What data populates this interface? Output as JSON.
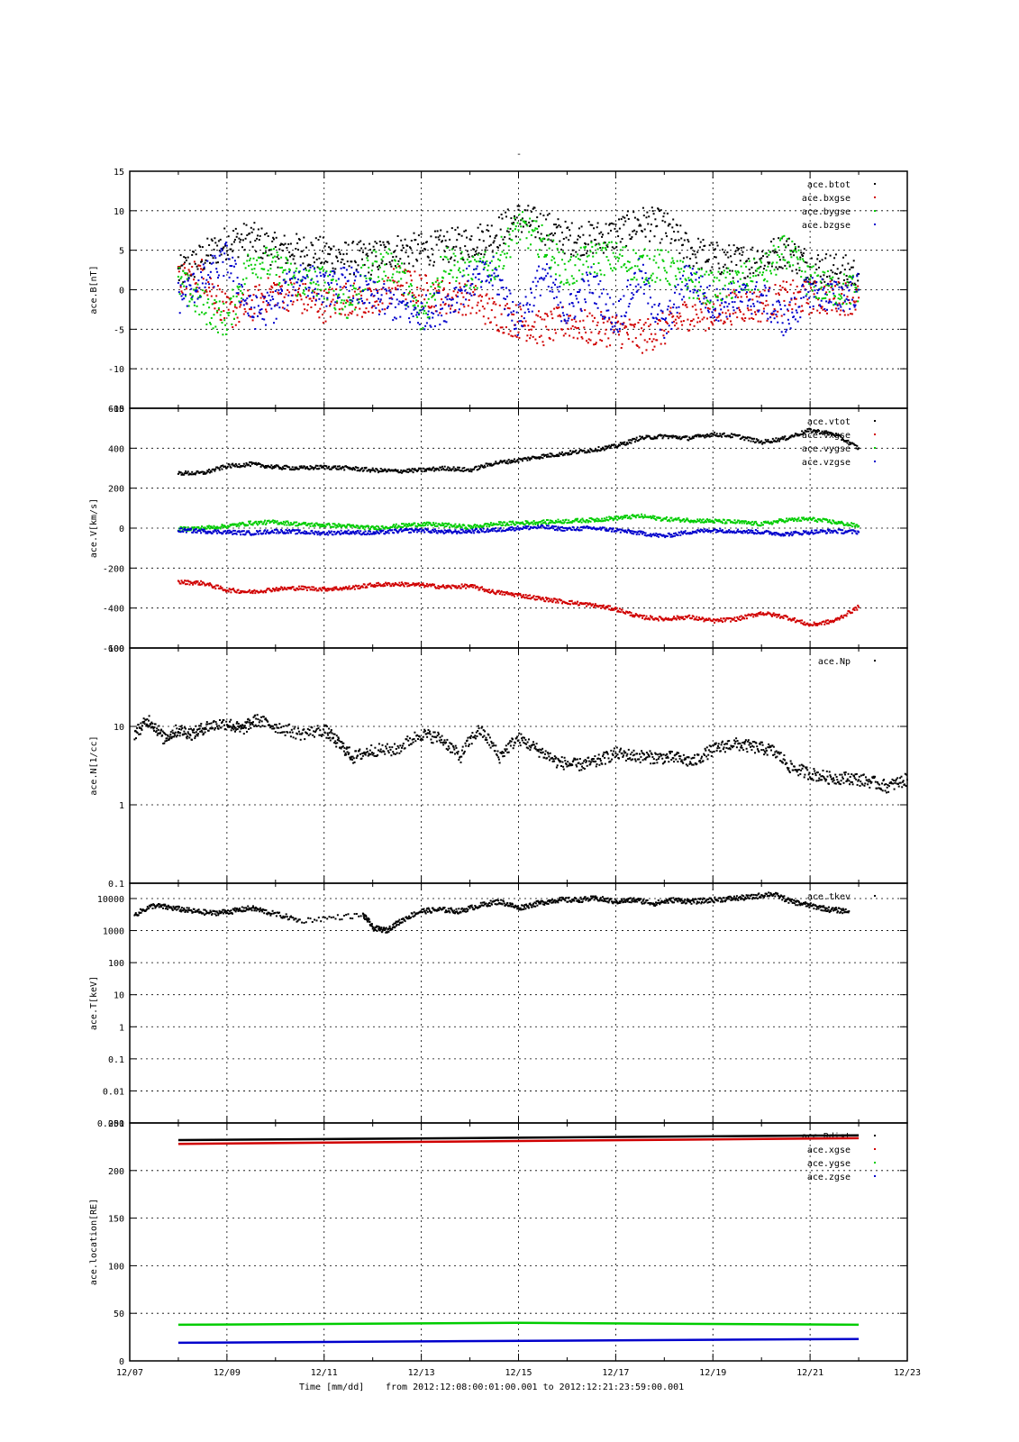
{
  "figure": {
    "title": "-",
    "footer": {
      "xlabel": "Time [mm/dd]",
      "range_text": "from 2012:12:08:00:01:00.001  to  2012:12:21:23:59:00.001"
    },
    "x_tick_labels": [
      "12/07",
      "12/09",
      "12/11",
      "12/13",
      "12/15",
      "12/17",
      "12/19",
      "12/21",
      "12/23"
    ]
  },
  "chart_data": [
    {
      "type": "scatter",
      "ylabel": "ace.B[nT]",
      "xlim": [
        "2012-12-07",
        "2012-12-23"
      ],
      "ylim": [
        -15,
        15
      ],
      "yscale": "linear",
      "yticks": [
        -15,
        -10,
        -5,
        0,
        5,
        10,
        15
      ],
      "ytick_labels": [
        "-15",
        "-10",
        "-5",
        "0",
        "5",
        "10",
        "15"
      ],
      "grid": true,
      "legend_position": "top-right",
      "series": [
        {
          "name": "ace.btot",
          "color": "#000000",
          "x": [
            "12/08",
            "12/08.5",
            "12/09",
            "12/09.5",
            "12/10",
            "12/10.5",
            "12/11",
            "12/11.5",
            "12/12",
            "12/12.5",
            "12/13",
            "12/13.5",
            "12/14",
            "12/14.5",
            "12/15",
            "12/15.5",
            "12/16",
            "12/16.5",
            "12/17",
            "12/17.5",
            "12/18",
            "12/18.5",
            "12/19",
            "12/19.5",
            "12/20",
            "12/20.5",
            "12/21",
            "12/21.5",
            "12/22"
          ],
          "values": [
            2,
            4,
            6,
            6.5,
            5,
            5,
            4.5,
            4,
            4,
            5,
            5,
            5.5,
            6,
            7,
            9,
            8,
            6.5,
            6.5,
            7,
            8.5,
            8,
            5,
            4,
            3.5,
            4,
            5,
            3,
            2.5,
            2
          ]
        },
        {
          "name": "ace.bxgse",
          "color": "#d00000",
          "x": [
            "12/08",
            "12/08.5",
            "12/09",
            "12/09.5",
            "12/10",
            "12/10.5",
            "12/11",
            "12/11.5",
            "12/12",
            "12/12.5",
            "12/13",
            "12/13.5",
            "12/14",
            "12/14.5",
            "12/15",
            "12/15.5",
            "12/16",
            "12/16.5",
            "12/17",
            "12/17.5",
            "12/18",
            "12/18.5",
            "12/19",
            "12/19.5",
            "12/20",
            "12/20.5",
            "12/21",
            "12/21.5",
            "12/22"
          ],
          "values": [
            1,
            2,
            -3,
            -2,
            0,
            -1,
            -2,
            -1,
            -2,
            1,
            0,
            -1,
            -1,
            -3,
            -4,
            -5,
            -4,
            -5,
            -5,
            -6,
            -5,
            -3,
            -3,
            -2,
            -2,
            -1,
            -1,
            -1,
            -1
          ]
        },
        {
          "name": "ace.bygse",
          "color": "#00cc00",
          "x": [
            "12/08",
            "12/08.5",
            "12/09",
            "12/09.5",
            "12/10",
            "12/10.5",
            "12/11",
            "12/11.5",
            "12/12",
            "12/12.5",
            "12/13",
            "12/13.5",
            "12/14",
            "12/14.5",
            "12/15",
            "12/15.5",
            "12/16",
            "12/16.5",
            "12/17",
            "12/17.5",
            "12/18",
            "12/18.5",
            "12/19",
            "12/19.5",
            "12/20",
            "12/20.5",
            "12/21",
            "12/21.5",
            "12/22"
          ],
          "values": [
            1,
            -2,
            -4,
            4,
            3,
            1,
            1,
            -2,
            3,
            3,
            -4,
            4,
            2,
            3,
            8,
            6,
            2,
            4,
            4,
            3,
            3,
            1,
            0,
            1,
            2,
            5,
            1,
            0,
            0
          ]
        },
        {
          "name": "ace.bzgse",
          "color": "#0000cc",
          "x": [
            "12/08",
            "12/08.5",
            "12/09",
            "12/09.5",
            "12/10",
            "12/10.5",
            "12/11",
            "12/11.5",
            "12/12",
            "12/12.5",
            "12/13",
            "12/13.5",
            "12/14",
            "12/14.5",
            "12/15",
            "12/15.5",
            "12/16",
            "12/16.5",
            "12/17",
            "12/17.5",
            "12/18",
            "12/18.5",
            "12/19",
            "12/19.5",
            "12/20",
            "12/20.5",
            "12/21",
            "12/21.5",
            "12/22"
          ],
          "values": [
            -1,
            1,
            4,
            -3,
            -2,
            2,
            0,
            1,
            -1,
            -2,
            -3,
            -2,
            1,
            2,
            -4,
            2,
            -3,
            1,
            -4,
            2,
            -5,
            2,
            -2,
            -1,
            -1,
            -4,
            0,
            -1,
            0
          ]
        }
      ]
    },
    {
      "type": "scatter",
      "ylabel": "ace.V[km/s]",
      "xlim": [
        "2012-12-07",
        "2012-12-23"
      ],
      "ylim": [
        -600,
        600
      ],
      "yscale": "linear",
      "yticks": [
        -600,
        -400,
        -200,
        0,
        200,
        400,
        600
      ],
      "ytick_labels": [
        "-600",
        "-400",
        "-200",
        "0",
        "200",
        "400",
        "600"
      ],
      "grid": true,
      "legend_position": "top-right",
      "series": [
        {
          "name": "ace.vtot",
          "color": "#000000",
          "x": [
            "12/08",
            "12/08.5",
            "12/09",
            "12/09.5",
            "12/10",
            "12/10.5",
            "12/11",
            "12/11.5",
            "12/12",
            "12/12.5",
            "12/13",
            "12/13.5",
            "12/14",
            "12/14.5",
            "12/15",
            "12/15.5",
            "12/16",
            "12/16.5",
            "12/17",
            "12/17.5",
            "12/18",
            "12/18.5",
            "12/19",
            "12/19.5",
            "12/20",
            "12/20.5",
            "12/21",
            "12/21.5",
            "12/22"
          ],
          "values": [
            275,
            275,
            310,
            320,
            305,
            300,
            305,
            300,
            290,
            285,
            290,
            300,
            290,
            325,
            340,
            360,
            375,
            390,
            410,
            450,
            460,
            450,
            470,
            460,
            430,
            450,
            490,
            470,
            400
          ]
        },
        {
          "name": "ace.vxgse",
          "color": "#d00000",
          "x": [
            "12/08",
            "12/08.5",
            "12/09",
            "12/09.5",
            "12/10",
            "12/10.5",
            "12/11",
            "12/11.5",
            "12/12",
            "12/12.5",
            "12/13",
            "12/13.5",
            "12/14",
            "12/14.5",
            "12/15",
            "12/15.5",
            "12/16",
            "12/16.5",
            "12/17",
            "12/17.5",
            "12/18",
            "12/18.5",
            "12/19",
            "12/19.5",
            "12/20",
            "12/20.5",
            "12/21",
            "12/21.5",
            "12/22"
          ],
          "values": [
            -270,
            -275,
            -310,
            -320,
            -305,
            -300,
            -305,
            -300,
            -285,
            -280,
            -285,
            -295,
            -290,
            -320,
            -335,
            -355,
            -370,
            -385,
            -405,
            -445,
            -455,
            -445,
            -465,
            -455,
            -425,
            -445,
            -485,
            -465,
            -395
          ]
        },
        {
          "name": "ace.vygse",
          "color": "#00cc00",
          "x": [
            "12/08",
            "12/08.5",
            "12/09",
            "12/09.5",
            "12/10",
            "12/10.5",
            "12/11",
            "12/11.5",
            "12/12",
            "12/12.5",
            "12/13",
            "12/13.5",
            "12/14",
            "12/14.5",
            "12/15",
            "12/15.5",
            "12/16",
            "12/16.5",
            "12/17",
            "12/17.5",
            "12/18",
            "12/18.5",
            "12/19",
            "12/19.5",
            "12/20",
            "12/20.5",
            "12/21",
            "12/21.5",
            "12/22"
          ],
          "values": [
            -5,
            0,
            10,
            25,
            30,
            20,
            15,
            10,
            0,
            10,
            20,
            15,
            5,
            20,
            25,
            30,
            35,
            40,
            50,
            60,
            45,
            40,
            35,
            30,
            20,
            40,
            45,
            30,
            10
          ]
        },
        {
          "name": "ace.vzgse",
          "color": "#0000cc",
          "x": [
            "12/08",
            "12/08.5",
            "12/09",
            "12/09.5",
            "12/10",
            "12/10.5",
            "12/11",
            "12/11.5",
            "12/12",
            "12/12.5",
            "12/13",
            "12/13.5",
            "12/14",
            "12/14.5",
            "12/15",
            "12/15.5",
            "12/16",
            "12/16.5",
            "12/17",
            "12/17.5",
            "12/18",
            "12/18.5",
            "12/19",
            "12/19.5",
            "12/20",
            "12/20.5",
            "12/21",
            "12/21.5",
            "12/22"
          ],
          "values": [
            -10,
            -15,
            -20,
            -25,
            -15,
            -20,
            -25,
            -20,
            -25,
            -15,
            -10,
            -20,
            -15,
            -10,
            0,
            5,
            -5,
            0,
            -10,
            -25,
            -40,
            -20,
            -10,
            -15,
            -20,
            -30,
            -20,
            -15,
            -20
          ]
        }
      ]
    },
    {
      "type": "scatter",
      "ylabel": "ace.N[1/cc]",
      "xlim": [
        "2012-12-07",
        "2012-12-23"
      ],
      "ylim": [
        0.1,
        100
      ],
      "yscale": "log",
      "yticks": [
        0.1,
        1,
        10,
        100
      ],
      "ytick_labels": [
        "0.1",
        "1",
        "10",
        "100"
      ],
      "grid": true,
      "legend_position": "top-right",
      "series": [
        {
          "name": "ace.Np",
          "color": "#000000",
          "x": [
            "12/07.1",
            "12/07.4",
            "12/07.7",
            "12/08.0",
            "12/08.3",
            "12/08.6",
            "12/09.0",
            "12/09.3",
            "12/09.6",
            "12/10.0",
            "12/10.5",
            "12/11.0",
            "12/11.3",
            "12/11.6",
            "12/12.0",
            "12/12.5",
            "12/13.0",
            "12/13.4",
            "12/13.8",
            "12/14.2",
            "12/14.6",
            "12/15.0",
            "12/15.4",
            "12/15.8",
            "12/16.2",
            "12/16.6",
            "12/17.0",
            "12/17.4",
            "12/17.8",
            "12/18.2",
            "12/18.6",
            "12/19.0",
            "12/19.4",
            "12/19.8",
            "12/20.2",
            "12/20.6",
            "12/21.0",
            "12/21.4",
            "12/21.8",
            "12/22.2",
            "12/22.6",
            "12/23.0"
          ],
          "values": [
            8,
            12,
            7,
            9,
            8,
            10,
            11,
            9,
            12,
            10,
            8,
            9,
            6,
            4,
            5,
            5,
            8,
            7,
            4,
            9,
            4,
            7,
            5,
            3.5,
            3.2,
            3.5,
            4.5,
            4.2,
            4,
            4,
            3.5,
            5,
            6,
            5.5,
            5,
            3,
            2.5,
            2.2,
            2.2,
            2,
            1.7,
            2.1
          ]
        }
      ]
    },
    {
      "type": "scatter",
      "ylabel": "ace.T[keV]",
      "xlim": [
        "2012-12-07",
        "2012-12-23"
      ],
      "ylim": [
        0.001,
        30000
      ],
      "yscale": "log",
      "yticks": [
        0.001,
        0.01,
        0.1,
        1,
        10,
        100,
        1000,
        10000
      ],
      "ytick_labels": [
        "0.001",
        "0.01",
        "0.1",
        "1",
        "10",
        "100",
        "1000",
        "10000"
      ],
      "grid": true,
      "legend_position": "top-right",
      "series": [
        {
          "name": "ace.tkev",
          "color": "#000000",
          "x": [
            "12/07.1",
            "12/07.5",
            "12/07.9",
            "12/08.3",
            "12/08.7",
            "12/09.1",
            "12/09.5",
            "12/09.9",
            "12/10.5",
            "12/11.8",
            "12/12.0",
            "12/12.3",
            "12/12.6",
            "12/13.0",
            "12/13.4",
            "12/13.8",
            "12/14.2",
            "12/14.6",
            "12/15.0",
            "12/15.4",
            "12/15.8",
            "12/16.2",
            "12/16.6",
            "12/17.0",
            "12/17.4",
            "12/17.8",
            "12/18.2",
            "12/18.6",
            "12/19.0",
            "12/19.4",
            "12/19.8",
            "12/20.2",
            "12/20.6",
            "12/21.0",
            "12/21.4",
            "12/21.8"
          ],
          "values": [
            3000,
            6000,
            5000,
            4000,
            3500,
            4000,
            5000,
            3500,
            2000,
            3000,
            1200,
            1000,
            2000,
            4000,
            4500,
            4000,
            6000,
            8000,
            5000,
            7000,
            9000,
            9000,
            10000,
            8000,
            9000,
            7000,
            9000,
            8000,
            9000,
            10000,
            11000,
            14000,
            8000,
            6000,
            4500,
            4000
          ]
        }
      ]
    },
    {
      "type": "scatter",
      "ylabel": "ace.location[RE]",
      "xlim": [
        "2012-12-07",
        "2012-12-23"
      ],
      "ylim": [
        0,
        250
      ],
      "yscale": "linear",
      "yticks": [
        0,
        50,
        100,
        150,
        200,
        250
      ],
      "ytick_labels": [
        "0",
        "50",
        "100",
        "150",
        "200",
        "250"
      ],
      "grid": true,
      "legend_position": "top-right",
      "series": [
        {
          "name": "ace.Rdist",
          "color": "#000000",
          "x": [
            "12/08",
            "12/22"
          ],
          "values": [
            232,
            237
          ]
        },
        {
          "name": "ace.xgse",
          "color": "#d00000",
          "x": [
            "12/08",
            "12/22"
          ],
          "values": [
            228,
            234
          ]
        },
        {
          "name": "ace.ygse",
          "color": "#00cc00",
          "x": [
            "12/08",
            "12/15",
            "12/22"
          ],
          "values": [
            38,
            40,
            38
          ]
        },
        {
          "name": "ace.zgse",
          "color": "#0000cc",
          "x": [
            "12/08",
            "12/22"
          ],
          "values": [
            19,
            23
          ]
        }
      ]
    }
  ]
}
